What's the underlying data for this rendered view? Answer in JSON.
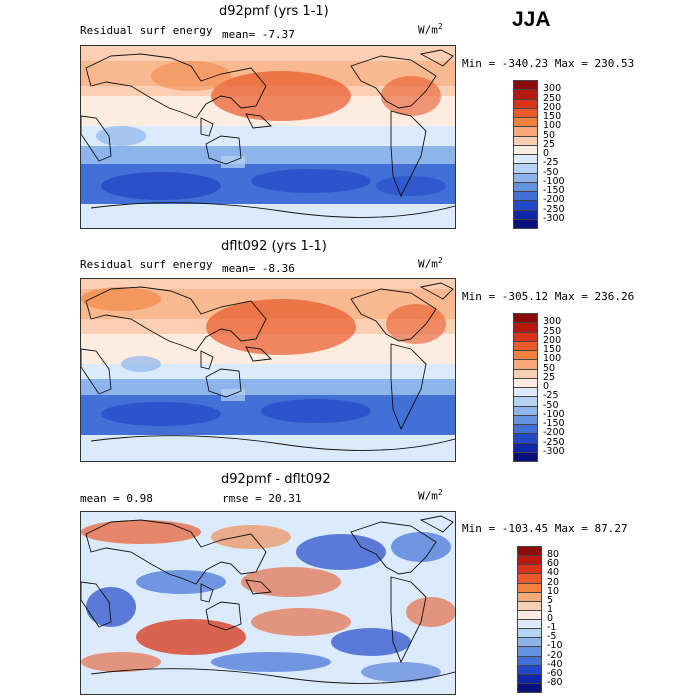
{
  "season": "JJA",
  "panels": [
    {
      "title": "d92pmf (yrs 1-1)",
      "left_label": "Residual surf energy",
      "mean_text": "mean=  -7.37",
      "units_base": "W/m",
      "units_exp": "2",
      "minmax": "Min = -340.23 Max = 230.53",
      "levels": [
        "300",
        "250",
        "200",
        "150",
        "100",
        "50",
        "25",
        "0",
        "-25",
        "-50",
        "-100",
        "-150",
        "-200",
        "-250",
        "-300"
      ],
      "colors": [
        "#8b0a0a",
        "#b7190f",
        "#d83518",
        "#e85a2b",
        "#f2813f",
        "#f7a878",
        "#fbcfb4",
        "#fdece0",
        "#dcebfb",
        "#b6d3f5",
        "#8db5ec",
        "#6593e0",
        "#4270d6",
        "#2449c7",
        "#1026a8",
        "#08117c"
      ]
    },
    {
      "title": "dflt092 (yrs 1-1)",
      "left_label": "Residual surf energy",
      "mean_text": "mean=  -8.36",
      "units_base": "W/m",
      "units_exp": "2",
      "minmax": "Min = -305.12 Max = 236.26",
      "levels": [
        "300",
        "250",
        "200",
        "150",
        "100",
        "50",
        "25",
        "0",
        "-25",
        "-50",
        "-100",
        "-150",
        "-200",
        "-250",
        "-300"
      ],
      "colors": [
        "#8b0a0a",
        "#b7190f",
        "#d83518",
        "#e85a2b",
        "#f2813f",
        "#f7a878",
        "#fbcfb4",
        "#fdece0",
        "#dcebfb",
        "#b6d3f5",
        "#8db5ec",
        "#6593e0",
        "#4270d6",
        "#2449c7",
        "#1026a8",
        "#08117c"
      ]
    },
    {
      "title": "d92pmf - dflt092",
      "left_label": "mean =   0.98",
      "mean_text": "rmse =  20.31",
      "units_base": "W/m",
      "units_exp": "2",
      "minmax": "Min = -103.45 Max =  87.27",
      "levels": [
        "80",
        "60",
        "40",
        "20",
        "10",
        "5",
        "1",
        "0",
        "-1",
        "-5",
        "-10",
        "-20",
        "-40",
        "-60",
        "-80"
      ],
      "colors": [
        "#8b0a0a",
        "#b7190f",
        "#d83518",
        "#e85a2b",
        "#f2813f",
        "#f7a878",
        "#fbcfb4",
        "#fdece0",
        "#dcebfb",
        "#b6d3f5",
        "#8db5ec",
        "#6593e0",
        "#4270d6",
        "#2449c7",
        "#1026a8",
        "#08117c"
      ]
    }
  ],
  "chart_data": {
    "type": "heatmap",
    "description_type": "global lat-lon contour maps with discrete colorbars",
    "panels": [
      {
        "title": "d92pmf (yrs 1-1)",
        "variable": "Residual surf energy",
        "mean": -7.37,
        "min": -340.23,
        "max": 230.53,
        "units": "W/m2",
        "levels": [
          300,
          250,
          200,
          150,
          100,
          50,
          25,
          0,
          -25,
          -50,
          -100,
          -150,
          -200,
          -250,
          -300
        ]
      },
      {
        "title": "dflt092 (yrs 1-1)",
        "variable": "Residual surf energy",
        "mean": -8.36,
        "min": -305.12,
        "max": 236.26,
        "units": "W/m2",
        "levels": [
          300,
          250,
          200,
          150,
          100,
          50,
          25,
          0,
          -25,
          -50,
          -100,
          -150,
          -200,
          -250,
          -300
        ]
      },
      {
        "title": "d92pmf - dflt092",
        "mean": 0.98,
        "rmse": 20.31,
        "min": -103.45,
        "max": 87.27,
        "units": "W/m2",
        "levels": [
          80,
          60,
          40,
          20,
          10,
          5,
          1,
          0,
          -1,
          -5,
          -10,
          -20,
          -40,
          -60,
          -80
        ]
      }
    ]
  }
}
